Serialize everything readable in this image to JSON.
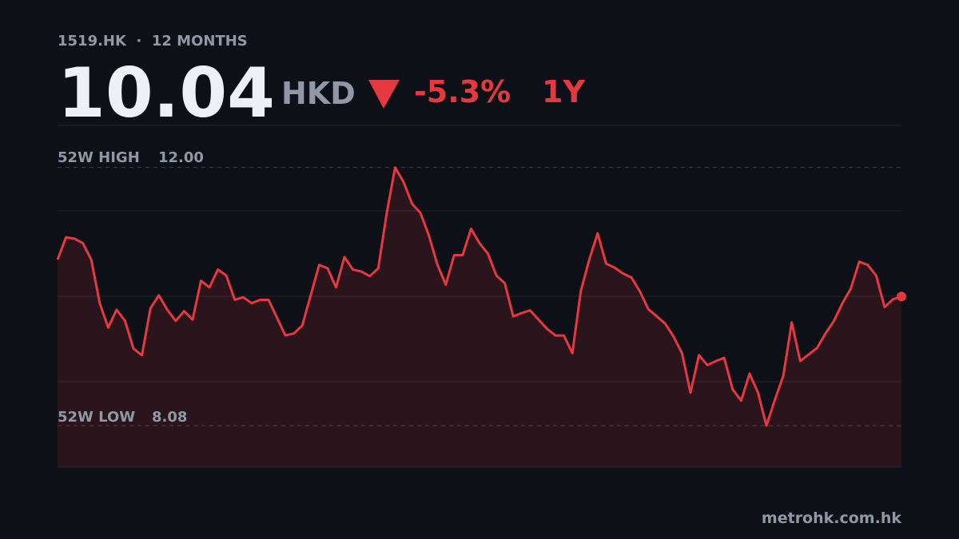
{
  "chart_data": {
    "type": "line",
    "subtitle": "1519.HK  ·  12 MONTHS",
    "price": 10.04,
    "currency": "HKD",
    "change": {
      "value": -5.3,
      "label": "-5.3%"
    },
    "range": "1Y",
    "high_label": "52W HIGH",
    "high": {
      "value": 12,
      "label": "12.00"
    },
    "low_label": "52W LOW",
    "low": {
      "value": 8.08,
      "label": "8.08"
    },
    "color": "#e5393f",
    "grid": true,
    "ylim": [
      7.45,
      12.64
    ],
    "values": [
      10.6,
      10.94,
      10.92,
      10.85,
      10.6,
      9.94,
      9.57,
      9.84,
      9.67,
      9.25,
      9.15,
      9.86,
      10.06,
      9.84,
      9.67,
      9.82,
      9.69,
      10.28,
      10.18,
      10.45,
      10.36,
      9.99,
      10.03,
      9.94,
      9.99,
      9.99,
      9.72,
      9.45,
      9.48,
      9.6,
      10.06,
      10.52,
      10.47,
      10.18,
      10.64,
      10.45,
      10.42,
      10.35,
      10.47,
      11.3,
      12.0,
      11.78,
      11.45,
      11.31,
      10.97,
      10.53,
      10.22,
      10.67,
      10.67,
      11.07,
      10.85,
      10.69,
      10.36,
      10.24,
      9.74,
      9.79,
      9.83,
      9.69,
      9.55,
      9.45,
      9.45,
      9.18,
      10.12,
      10.6,
      11.0,
      10.54,
      10.48,
      10.39,
      10.33,
      10.12,
      9.85,
      9.74,
      9.63,
      9.43,
      9.18,
      8.58,
      9.15,
      9.0,
      9.06,
      9.11,
      8.63,
      8.46,
      8.87,
      8.58,
      8.08,
      8.47,
      8.84,
      9.65,
      9.06,
      9.16,
      9.26,
      9.48,
      9.67,
      9.94,
      10.16,
      10.57,
      10.52,
      10.36,
      9.88,
      10.0,
      10.04
    ]
  },
  "footer": "metrohk.com.hk"
}
